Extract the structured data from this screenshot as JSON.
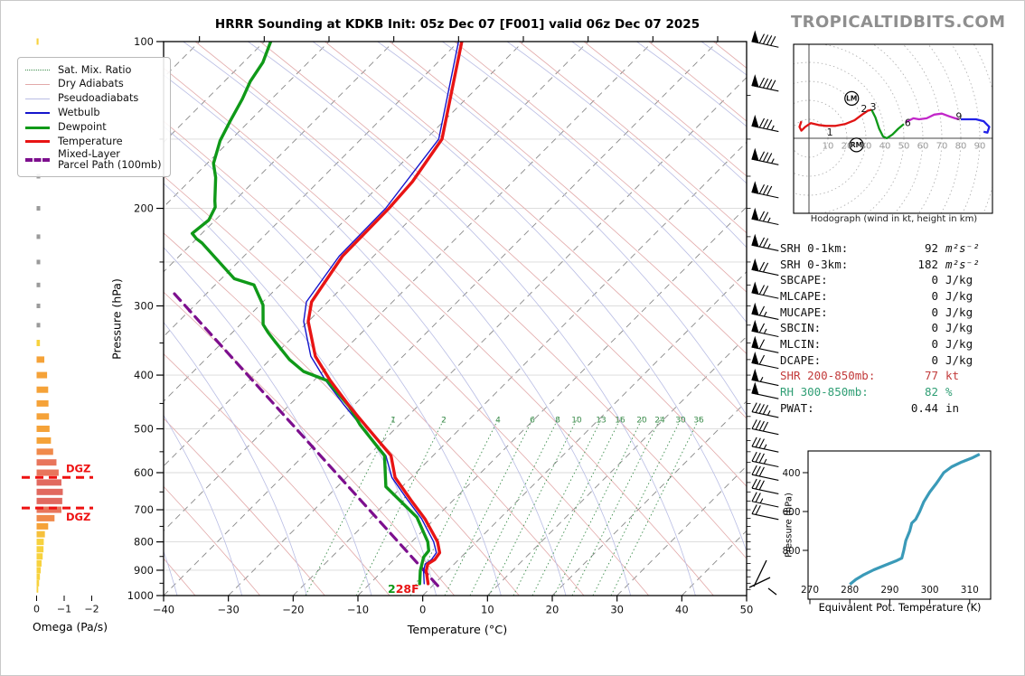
{
  "title": "HRRR Sounding at KDKB Init: 05z Dec 07 [F001] valid 06z Dec 07 2025",
  "watermark": "TROPICALTIDBITS.COM",
  "legend": {
    "items": [
      {
        "label": "Sat. Mix. Ratio",
        "style": "mixratio"
      },
      {
        "label": "Dry Adiabats",
        "style": "dry"
      },
      {
        "label": "Pseudoadiabats",
        "style": "pseudo"
      },
      {
        "label": "Wetbulb",
        "style": "wetbulb"
      },
      {
        "label": "Dewpoint",
        "style": "dewpoint"
      },
      {
        "label": "Temperature",
        "style": "temperature"
      },
      {
        "label": "Mixed-Layer\nParcel Path (100mb)",
        "style": "parcel"
      }
    ]
  },
  "stats": {
    "rows": [
      {
        "label": "SRH 0-1km:",
        "value": "92",
        "unit": "m²s⁻²",
        "italic": true,
        "color": "#111111"
      },
      {
        "label": "SRH 0-3km:",
        "value": "182",
        "unit": "m²s⁻²",
        "italic": true,
        "color": "#111111"
      },
      {
        "label": "SBCAPE:",
        "value": "0",
        "unit": "J/kg",
        "color": "#111111"
      },
      {
        "label": "MLCAPE:",
        "value": "0",
        "unit": "J/kg",
        "color": "#111111"
      },
      {
        "label": "MUCAPE:",
        "value": "0",
        "unit": "J/kg",
        "color": "#111111"
      },
      {
        "label": "SBCIN:",
        "value": "0",
        "unit": "J/kg",
        "color": "#111111"
      },
      {
        "label": "MLCIN:",
        "value": "0",
        "unit": "J/kg",
        "color": "#111111"
      },
      {
        "label": "DCAPE:",
        "value": "0",
        "unit": "J/kg",
        "color": "#111111"
      },
      {
        "label": "SHR 200-850mb:",
        "value": "77",
        "unit": "kt",
        "color": "#c23b3b"
      },
      {
        "label": "RH 300-850mb:",
        "value": "82",
        "unit": "%",
        "color": "#2f9e74"
      },
      {
        "label": "PWAT:",
        "value": "0.44",
        "unit": "in",
        "color": "#111111"
      }
    ]
  },
  "labels": {
    "skewt_ylabel": "Pressure (hPa)",
    "skewt_xlabel": "Temperature (°C)",
    "omega_xlabel": "Omega (Pa/s)",
    "hodo_caption": "Hodograph (wind in kt, height in km)",
    "thetae_xlabel": "Equivalent Pot. Temperature (K)",
    "thetae_ylabel": "Pressure (hPa)"
  },
  "colors": {
    "temperature": "#e81414",
    "dewpoint": "#0f9918",
    "wetbulb": "#1515cc",
    "parcel": "#7d0f8e",
    "isotherm": "#888888",
    "dry_adiabat": "#e2a9a9",
    "pseudoadiabat": "#b9bde4",
    "mixratio": "#3e8e4e",
    "gridline": "#d8d8d8",
    "dgz": "#ee1111",
    "thetae_curve": "#3a9ab8",
    "hodo_segments": [
      "#e01414",
      "#0f9918",
      "#c227c9",
      "#2222e8"
    ],
    "omega_palette": {
      "g": "#9a9a9a",
      "y": "#f7d23e",
      "yo": "#f6c03b",
      "o": "#f5a238",
      "do": "#f08a4b",
      "s": "#e8755c",
      "r": "#e1695f"
    }
  },
  "chart_data": [
    {
      "id": "skewt",
      "type": "line",
      "x_axis": {
        "label": "Temperature (°C)",
        "ticks": [
          -40,
          -30,
          -20,
          -10,
          0,
          10,
          20,
          30,
          40,
          50
        ],
        "range": [
          -40,
          50
        ]
      },
      "y_axis": {
        "label": "Pressure (hPa)",
        "ticks": [
          100,
          200,
          300,
          400,
          500,
          600,
          700,
          800,
          900,
          1000
        ],
        "scale": "log",
        "range": [
          100,
          1000
        ],
        "gridlines": [
          150,
          200,
          250,
          300,
          400,
          500,
          600,
          700,
          800,
          900
        ]
      },
      "series": [
        {
          "name": "Temperature",
          "units": [
            "hPa",
            "C"
          ],
          "points": [
            [
              100,
              -79.5
            ],
            [
              150,
              -67.5
            ],
            [
              179,
              -65.5
            ],
            [
              200,
              -65
            ],
            [
              244,
              -64.8
            ],
            [
              295,
              -62.5
            ],
            [
              320,
              -60
            ],
            [
              370,
              -53.5
            ],
            [
              409,
              -47.5
            ],
            [
              452,
              -41
            ],
            [
              476,
              -37.5
            ],
            [
              559,
              -26.5
            ],
            [
              612,
              -22.5
            ],
            [
              673,
              -16.5
            ],
            [
              727,
              -11.5
            ],
            [
              800,
              -6
            ],
            [
              837,
              -4
            ],
            [
              861,
              -3.7
            ],
            [
              877,
              -4.1
            ],
            [
              902,
              -3.3
            ],
            [
              952,
              -1
            ]
          ]
        },
        {
          "name": "Dewpoint",
          "units": [
            "hPa",
            "C"
          ],
          "points": [
            [
              100,
              -109
            ],
            [
              109,
              -107
            ],
            [
              118,
              -106
            ],
            [
              127,
              -104.5
            ],
            [
              139,
              -103
            ],
            [
              151,
              -101.5
            ],
            [
              166,
              -99
            ],
            [
              176,
              -96.5
            ],
            [
              194,
              -93
            ],
            [
              199,
              -92
            ],
            [
              210,
              -91
            ],
            [
              222,
              -91.5
            ],
            [
              227,
              -90
            ],
            [
              231,
              -88.5
            ],
            [
              268,
              -78
            ],
            [
              275,
              -74
            ],
            [
              299,
              -69.5
            ],
            [
              324,
              -66.5
            ],
            [
              335,
              -64.5
            ],
            [
              348,
              -62
            ],
            [
              375,
              -57
            ],
            [
              394,
              -53
            ],
            [
              409,
              -48
            ],
            [
              443,
              -42.5
            ],
            [
              456,
              -40.5
            ],
            [
              492,
              -36
            ],
            [
              559,
              -27.5
            ],
            [
              636,
              -22.5
            ],
            [
              722,
              -13
            ],
            [
              800,
              -7.5
            ],
            [
              830,
              -6
            ],
            [
              852,
              -5.8
            ],
            [
              877,
              -5
            ],
            [
              902,
              -4.2
            ],
            [
              952,
              -2.3
            ]
          ]
        },
        {
          "name": "Wetbulb",
          "units": [
            "hPa",
            "C"
          ],
          "points": [
            [
              100,
              -80
            ],
            [
              150,
              -68
            ],
            [
              200,
              -65.5
            ],
            [
              244,
              -65.3
            ],
            [
              295,
              -63.3
            ],
            [
              320,
              -60.7
            ],
            [
              370,
              -54.2
            ],
            [
              409,
              -48.2
            ],
            [
              452,
              -41.7
            ],
            [
              476,
              -38.2
            ],
            [
              559,
              -27.3
            ],
            [
              612,
              -23
            ],
            [
              673,
              -17
            ],
            [
              727,
              -12
            ],
            [
              800,
              -6.6
            ],
            [
              837,
              -4.5
            ],
            [
              861,
              -4.2
            ],
            [
              877,
              -4.5
            ],
            [
              902,
              -3.7
            ],
            [
              952,
              -1.6
            ]
          ]
        },
        {
          "name": "Mixed-Layer Parcel Path (100mb)",
          "units": [
            "hPa",
            "C"
          ],
          "points": [
            [
              960,
              0.8
            ],
            [
              283,
              -85.5
            ]
          ]
        }
      ],
      "mixing_ratio_labels": [
        [
          "1",
          434
        ],
        [
          "2",
          490
        ],
        [
          "4",
          550
        ],
        [
          "6",
          588
        ],
        [
          "8",
          616
        ],
        [
          "10",
          637
        ],
        [
          "13",
          664
        ],
        [
          "16",
          685
        ],
        [
          "20",
          709
        ],
        [
          "24",
          729
        ],
        [
          "30",
          752
        ],
        [
          "36",
          772
        ]
      ],
      "surface_annotation": {
        "dewpoint": "2",
        "temperature": "28F"
      }
    },
    {
      "id": "omega",
      "type": "bar",
      "xlabel": "Omega (Pa/s)",
      "x_ticks": [
        "0",
        "−1",
        "−2"
      ],
      "bars": [
        [
          100,
          -0.07,
          "y"
        ],
        [
          175,
          -0.05,
          "g"
        ],
        [
          200,
          -0.05,
          "g"
        ],
        [
          225,
          -0.05,
          "g"
        ],
        [
          250,
          -0.06,
          "g"
        ],
        [
          275,
          -0.06,
          "g"
        ],
        [
          300,
          -0.06,
          "g"
        ],
        [
          325,
          -0.07,
          "g"
        ],
        [
          350,
          -0.12,
          "y"
        ],
        [
          375,
          -0.28,
          "o"
        ],
        [
          400,
          -0.38,
          "o"
        ],
        [
          425,
          -0.42,
          "o"
        ],
        [
          450,
          -0.43,
          "o"
        ],
        [
          475,
          -0.45,
          "o"
        ],
        [
          500,
          -0.47,
          "o"
        ],
        [
          525,
          -0.52,
          "o"
        ],
        [
          550,
          -0.6,
          "do"
        ],
        [
          575,
          -0.72,
          "s"
        ],
        [
          600,
          -0.8,
          "s"
        ],
        [
          625,
          -0.9,
          "r"
        ],
        [
          650,
          -0.95,
          "r"
        ],
        [
          675,
          -0.93,
          "r"
        ],
        [
          700,
          -0.9,
          "s"
        ],
        [
          725,
          -0.65,
          "do"
        ],
        [
          750,
          -0.42,
          "o"
        ],
        [
          775,
          -0.3,
          "yo"
        ],
        [
          800,
          -0.26,
          "y"
        ],
        [
          825,
          -0.25,
          "y"
        ],
        [
          850,
          -0.22,
          "y"
        ],
        [
          875,
          -0.18,
          "y"
        ],
        [
          900,
          -0.15,
          "y"
        ],
        [
          925,
          -0.12,
          "y"
        ],
        [
          950,
          -0.09,
          "y"
        ],
        [
          975,
          -0.06,
          "y"
        ]
      ],
      "dgz": {
        "label": "DGZ",
        "lines_hpa": [
          612,
          695
        ]
      }
    },
    {
      "id": "wind_barbs",
      "type": "barbs",
      "units": "kt",
      "levels": [
        [
          100,
          90
        ],
        [
          120,
          90
        ],
        [
          142,
          85
        ],
        [
          163,
          85
        ],
        [
          187,
          80
        ],
        [
          209,
          75
        ],
        [
          233,
          75
        ],
        [
          258,
          70
        ],
        [
          284,
          70
        ],
        [
          310,
          65
        ],
        [
          333,
          65
        ],
        [
          356,
          60
        ],
        [
          380,
          60
        ],
        [
          408,
          55
        ],
        [
          431,
          50
        ],
        [
          466,
          45
        ],
        [
          500,
          40
        ],
        [
          538,
          35
        ],
        [
          572,
          35
        ],
        [
          605,
          30
        ],
        [
          640,
          30
        ],
        [
          676,
          25
        ],
        [
          712,
          20
        ]
      ],
      "surface_barb": {
        "kt": 5,
        "note": "light near-surface wind, opposite orientation"
      }
    },
    {
      "id": "hodograph",
      "type": "line",
      "units": "kt",
      "ring_labels": [
        10,
        20,
        30,
        40,
        50,
        60,
        70,
        80,
        90
      ],
      "series": [
        {
          "name": "0-3km",
          "points": [
            [
              -4,
              9
            ],
            [
              -5,
              6
            ],
            [
              -4,
              4
            ],
            [
              -2,
              6
            ],
            [
              1,
              8
            ],
            [
              5,
              7
            ],
            [
              9,
              6.5
            ],
            [
              14,
              6.5
            ],
            [
              19,
              7.5
            ],
            [
              24,
              9.5
            ],
            [
              28,
              12.5
            ],
            [
              31,
              14.5
            ],
            [
              33,
              15
            ]
          ]
        },
        {
          "name": "3-6km",
          "points": [
            [
              33,
              15
            ],
            [
              35,
              11
            ],
            [
              37,
              5
            ],
            [
              39,
              1
            ],
            [
              41,
              0
            ],
            [
              44,
              2
            ],
            [
              47,
              5
            ],
            [
              50,
              7.5
            ]
          ]
        },
        {
          "name": "6-9km",
          "points": [
            [
              51,
              8.5
            ],
            [
              55,
              10.5
            ],
            [
              58,
              10
            ],
            [
              62,
              10.5
            ],
            [
              66,
              12.5
            ],
            [
              70,
              13
            ],
            [
              74,
              11.5
            ],
            [
              77,
              10.5
            ],
            [
              79,
              10
            ]
          ]
        },
        {
          "name": "9km+",
          "points": [
            [
              80,
              10
            ],
            [
              84,
              10
            ],
            [
              88,
              10
            ],
            [
              92,
              9
            ],
            [
              95,
              6
            ],
            [
              94,
              3
            ],
            [
              92,
              3.5
            ]
          ]
        }
      ],
      "height_labels": [
        [
          "1",
          11,
          3
        ],
        [
          "2",
          29,
          15.5
        ],
        [
          "3",
          33.8,
          16.5
        ],
        [
          "6",
          52,
          8.2
        ],
        [
          "9",
          79,
          11.5
        ]
      ],
      "markers": [
        {
          "label": "LM",
          "u": 22.5,
          "v": 21
        },
        {
          "label": "RM",
          "u": 25,
          "v": -3.5
        }
      ]
    },
    {
      "id": "thetae",
      "type": "line",
      "xlabel": "Equivalent Pot. Temperature (K)",
      "ylabel": "Pressure (hPa)",
      "x_ticks": [
        270,
        280,
        290,
        300,
        310
      ],
      "y_ticks": [
        400,
        600,
        800
      ],
      "points": [
        [
          280,
          975
        ],
        [
          281.5,
          950
        ],
        [
          283.5,
          925
        ],
        [
          286,
          900
        ],
        [
          289,
          875
        ],
        [
          291.5,
          855
        ],
        [
          293,
          840
        ],
        [
          293.5,
          800
        ],
        [
          294,
          750
        ],
        [
          295,
          700
        ],
        [
          295.5,
          660
        ],
        [
          296.5,
          640
        ],
        [
          297.5,
          600
        ],
        [
          298.5,
          550
        ],
        [
          300,
          500
        ],
        [
          301.5,
          460
        ],
        [
          302.5,
          430
        ],
        [
          303.5,
          400
        ],
        [
          305.5,
          370
        ],
        [
          308,
          345
        ],
        [
          310.5,
          325
        ],
        [
          312.5,
          305
        ]
      ]
    }
  ]
}
